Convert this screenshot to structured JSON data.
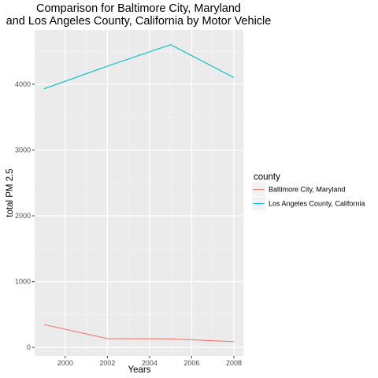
{
  "chart_data": {
    "type": "line",
    "title_lines": [
      "Comparison for Baltimore City, Maryland",
      "and Los Angeles County, California by Motor Vehicle"
    ],
    "xlabel": "Years",
    "ylabel": "total PM 2.5",
    "x": [
      1999,
      2002,
      2005,
      2008
    ],
    "xlim": [
      1998.55,
      2008.45
    ],
    "ylim": [
      -130,
      4825
    ],
    "x_ticks": [
      2000,
      2002,
      2004,
      2006,
      2008
    ],
    "y_ticks": [
      0,
      1000,
      2000,
      3000,
      4000
    ],
    "grid": true,
    "legend": {
      "title": "county",
      "position": "right"
    },
    "series": [
      {
        "name": "Baltimore City, Maryland",
        "color": "#F8766D",
        "values": [
          347,
          134,
          130,
          88
        ]
      },
      {
        "name": "Los Angeles County, California",
        "color": "#00BFC4",
        "values": [
          3931,
          4274,
          4601,
          4101
        ]
      }
    ]
  }
}
